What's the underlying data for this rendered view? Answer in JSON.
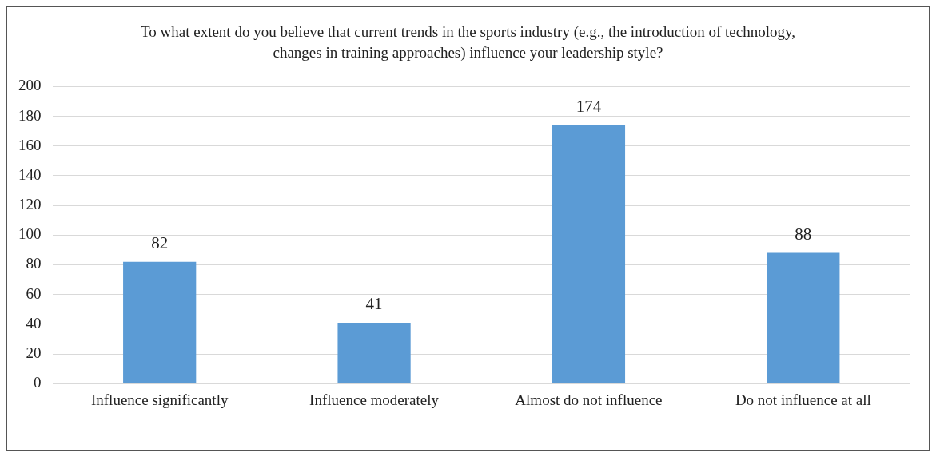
{
  "chart_data": {
    "type": "bar",
    "title": "To what extent do you believe that current trends in the sports industry (e.g., the introduction of technology, changes in training approaches) influence your leadership style?",
    "categories": [
      "Influence significantly",
      "Influence moderately",
      "Almost do not influence",
      "Do not influence at all"
    ],
    "values": [
      82,
      41,
      174,
      88
    ],
    "color": "#5b9bd5",
    "ylim": [
      0,
      200
    ],
    "yticks": [
      0,
      20,
      40,
      60,
      80,
      100,
      120,
      140,
      160,
      180,
      200
    ],
    "grid": "y",
    "data_labels": true
  }
}
